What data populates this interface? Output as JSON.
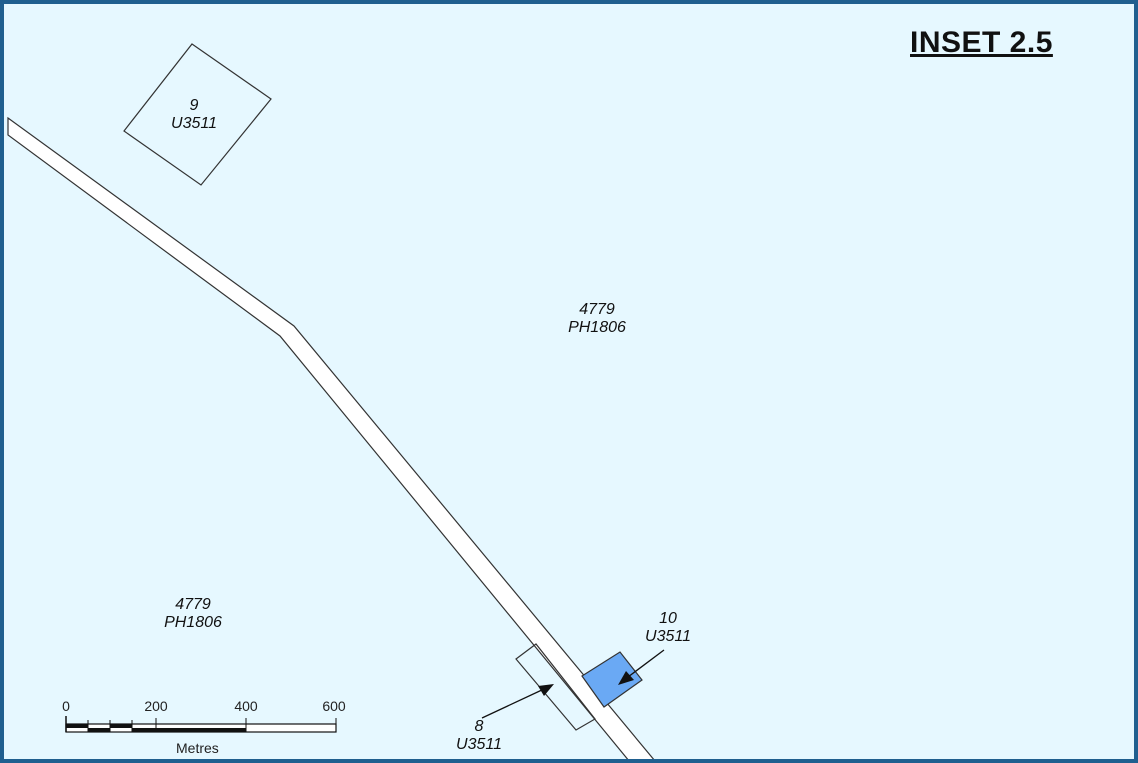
{
  "map": {
    "title": "INSET 2.5",
    "parcels": [
      {
        "id": "9",
        "code": "U3511"
      },
      {
        "id": "4779",
        "code": "PH1806"
      },
      {
        "id": "4779",
        "code": "PH1806"
      },
      {
        "id": "10",
        "code": "U3511"
      },
      {
        "id": "8",
        "code": "U3511"
      }
    ],
    "scale_bar": {
      "ticks": [
        "0",
        "200",
        "400",
        "600"
      ],
      "unit": "Metres"
    },
    "colors": {
      "background": "#e6f8ff",
      "frame": "#1f5f8f",
      "highlight_parcel": "#6aa9f4",
      "road_fill": "#ffffff"
    }
  }
}
